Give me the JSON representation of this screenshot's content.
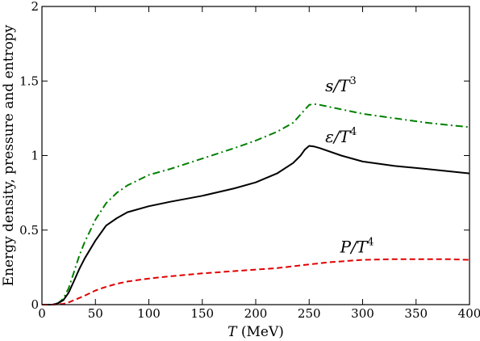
{
  "chart_data": {
    "type": "line",
    "xlabel": {
      "var": "T",
      "unit": " (MeV)"
    },
    "ylabel": "Energy density, pressure and entropy",
    "xlim": [
      0,
      400
    ],
    "ylim": [
      0,
      2
    ],
    "xticks": [
      0,
      50,
      100,
      150,
      200,
      250,
      300,
      350,
      400
    ],
    "yticks": [
      0,
      0.5,
      1,
      1.5,
      2
    ],
    "grid": false,
    "series": [
      {
        "name": "s/T3",
        "color": "#008000",
        "dash": "dashdot",
        "x": [
          0,
          10,
          15,
          20,
          25,
          30,
          35,
          40,
          50,
          60,
          70,
          80,
          100,
          120,
          150,
          180,
          200,
          220,
          235,
          245,
          250,
          255,
          260,
          280,
          300,
          330,
          360,
          400
        ],
        "y": [
          0,
          0,
          0.01,
          0.04,
          0.11,
          0.22,
          0.33,
          0.42,
          0.57,
          0.68,
          0.75,
          0.8,
          0.87,
          0.91,
          0.98,
          1.05,
          1.1,
          1.16,
          1.22,
          1.3,
          1.34,
          1.345,
          1.34,
          1.31,
          1.28,
          1.25,
          1.22,
          1.19
        ]
      },
      {
        "name": "ε/T4",
        "color": "#000000",
        "dash": "solid",
        "x": [
          0,
          10,
          15,
          20,
          25,
          30,
          35,
          40,
          50,
          60,
          70,
          80,
          100,
          120,
          150,
          180,
          200,
          220,
          235,
          242,
          246,
          250,
          255,
          260,
          280,
          300,
          330,
          360,
          400
        ],
        "y": [
          0,
          0,
          0.01,
          0.03,
          0.08,
          0.16,
          0.24,
          0.31,
          0.43,
          0.53,
          0.58,
          0.62,
          0.66,
          0.69,
          0.73,
          0.78,
          0.82,
          0.88,
          0.95,
          1.0,
          1.04,
          1.065,
          1.06,
          1.05,
          1.0,
          0.96,
          0.93,
          0.91,
          0.88
        ]
      },
      {
        "name": "P/T4",
        "color": "#e00000",
        "dash": "dashed",
        "x": [
          0,
          10,
          20,
          25,
          30,
          40,
          50,
          60,
          70,
          80,
          100,
          120,
          150,
          180,
          200,
          220,
          250,
          270,
          300,
          330,
          360,
          380,
          400
        ],
        "y": [
          0,
          0,
          0.005,
          0.015,
          0.03,
          0.06,
          0.095,
          0.12,
          0.14,
          0.155,
          0.175,
          0.19,
          0.21,
          0.225,
          0.235,
          0.245,
          0.27,
          0.285,
          0.3,
          0.305,
          0.305,
          0.305,
          0.3
        ]
      }
    ],
    "annotations": [
      {
        "var": "s/T",
        "exp": "3",
        "x": 265,
        "y": 1.43
      },
      {
        "var": "ε/T",
        "exp": "4",
        "x": 265,
        "y": 1.09
      },
      {
        "var": "P/T",
        "exp": "4",
        "x": 279,
        "y": 0.35
      }
    ]
  }
}
